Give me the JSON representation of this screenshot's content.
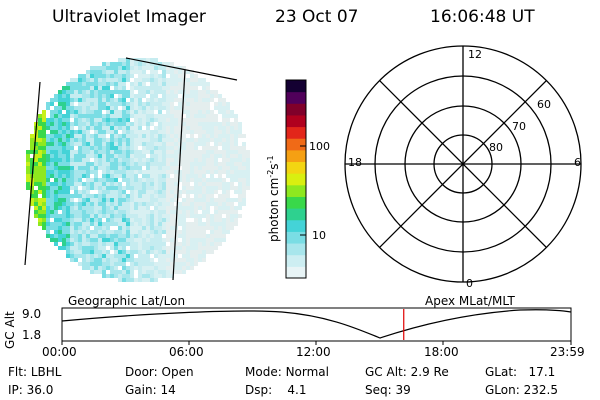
{
  "header": {
    "instrument": "Ultraviolet Imager",
    "date": "23 Oct 07",
    "time": "16:06:48 UT"
  },
  "colorbar": {
    "unit_text": "photon cm",
    "unit_exp1": "-2",
    "unit_s": "s",
    "unit_exp2": "-1",
    "ticks": [
      {
        "label": "100",
        "value": 100
      },
      {
        "label": "10",
        "value": 10
      }
    ],
    "colors": [
      "#e8f4f6",
      "#cdeef2",
      "#a8e6ec",
      "#7adde4",
      "#44d3d7",
      "#2ed18f",
      "#39d84a",
      "#8ee81f",
      "#d9ef10",
      "#f3d512",
      "#f5a013",
      "#f06a17",
      "#e2261a",
      "#b0001e",
      "#80002a",
      "#50005a",
      "#140032"
    ]
  },
  "polar": {
    "mlt_labels": {
      "top": "12",
      "left": "18",
      "right": "6",
      "bottom": "0"
    },
    "lat_labels": [
      "60",
      "70",
      "80"
    ]
  },
  "timeline": {
    "left_label": "Geographic Lat/Lon",
    "right_label": "Apex MLat/MLT",
    "axis_title": "GC Alt",
    "y_max": "9.0",
    "y_min": "1.8",
    "time_ticks": [
      "00:00",
      "06:00",
      "12:00",
      "18:00",
      "23:59"
    ],
    "current_fraction": 0.6714
  },
  "info": {
    "flt_label": "Flt:",
    "flt_value": "LBHL",
    "ip_label": "IP:",
    "ip_value": "36.0",
    "door_label": "Door:",
    "door_value": "Open",
    "gain_label": "Gain:",
    "gain_value": "14",
    "mode_label": "Mode:",
    "mode_value": "Normal",
    "dsp_label": "Dsp:",
    "dsp_value": "4.1",
    "gcalt_label": "GC Alt:",
    "gcalt_value": "2.9 Re",
    "seq_label": "Seq:",
    "seq_value": "39",
    "glat_label": "GLat:",
    "glat_value": "17.1",
    "glon_label": "GLon:",
    "glon_value": "232.5"
  }
}
